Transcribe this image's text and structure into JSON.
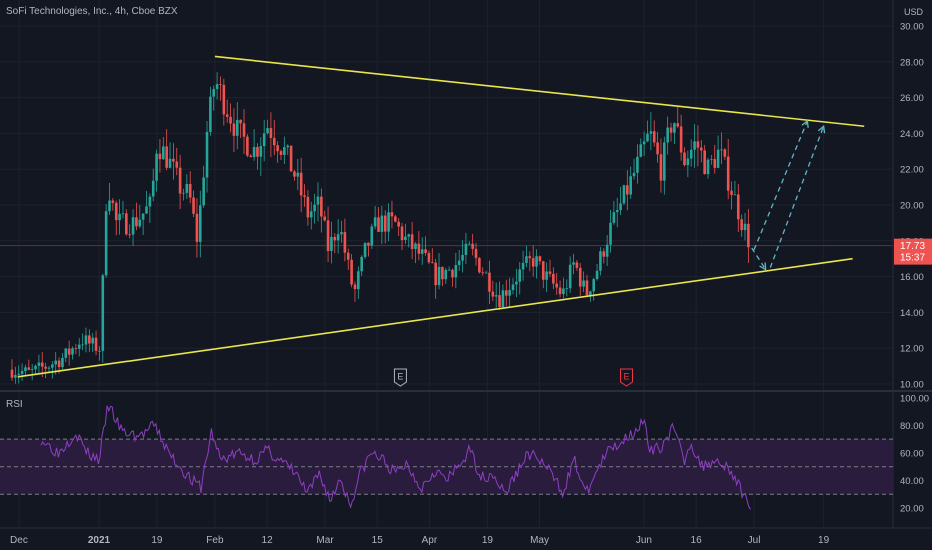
{
  "chart_data": {
    "type": "candlestick",
    "title": "SoFi Technologies, Inc., 4h, Cboe BZX",
    "currency": "USD",
    "price_axis": {
      "ylim": [
        10.0,
        30.0
      ],
      "ticks": [
        "10.00",
        "12.00",
        "14.00",
        "16.00",
        "18.00",
        "20.00",
        "22.00",
        "24.00",
        "26.00",
        "28.00",
        "30.00"
      ]
    },
    "time_axis": {
      "ticks": [
        "Dec",
        "2021",
        "19",
        "Feb",
        "12",
        "Mar",
        "15",
        "Apr",
        "19",
        "May",
        "Jun",
        "16",
        "Jul",
        "19"
      ]
    },
    "last_price": {
      "value": "17.73",
      "countdown": "15:37",
      "price": 17.73
    },
    "price_series": [
      {
        "t": 0.0,
        "p": 10.8
      },
      {
        "t": 1.5,
        "p": 10.6
      },
      {
        "t": 3.0,
        "p": 11.0
      },
      {
        "t": 4.5,
        "p": 11.5
      },
      {
        "t": 6.0,
        "p": 12.5
      },
      {
        "t": 6.8,
        "p": 12.2
      },
      {
        "t": 7.6,
        "p": 12.0
      },
      {
        "t": 8.2,
        "p": 21.5
      },
      {
        "t": 9.0,
        "p": 19.0
      },
      {
        "t": 10.5,
        "p": 19.0
      },
      {
        "t": 12.0,
        "p": 20.0
      },
      {
        "t": 12.5,
        "p": 23.5
      },
      {
        "t": 13.5,
        "p": 22.5
      },
      {
        "t": 14.5,
        "p": 21.0
      },
      {
        "t": 15.3,
        "p": 20.5
      },
      {
        "t": 16.0,
        "p": 18.0
      },
      {
        "t": 16.8,
        "p": 24.0
      },
      {
        "t": 17.5,
        "p": 27.0
      },
      {
        "t": 18.5,
        "p": 25.5
      },
      {
        "t": 19.5,
        "p": 24.0
      },
      {
        "t": 21.0,
        "p": 23.0
      },
      {
        "t": 22.0,
        "p": 24.5
      },
      {
        "t": 23.5,
        "p": 23.0
      },
      {
        "t": 24.5,
        "p": 21.5
      },
      {
        "t": 25.5,
        "p": 19.5
      },
      {
        "t": 26.5,
        "p": 20.0
      },
      {
        "t": 27.3,
        "p": 17.5
      },
      {
        "t": 28.2,
        "p": 19.0
      },
      {
        "t": 29.0,
        "p": 16.5
      },
      {
        "t": 29.5,
        "p": 15.0
      },
      {
        "t": 30.5,
        "p": 17.5
      },
      {
        "t": 31.5,
        "p": 19.0
      },
      {
        "t": 33.0,
        "p": 19.0
      },
      {
        "t": 34.0,
        "p": 18.0
      },
      {
        "t": 35.5,
        "p": 17.0
      },
      {
        "t": 36.5,
        "p": 16.0
      },
      {
        "t": 38.0,
        "p": 16.5
      },
      {
        "t": 39.5,
        "p": 17.5
      },
      {
        "t": 40.5,
        "p": 16.5
      },
      {
        "t": 42.0,
        "p": 14.8
      },
      {
        "t": 43.5,
        "p": 16.0
      },
      {
        "t": 45.0,
        "p": 17.0
      },
      {
        "t": 46.0,
        "p": 16.0
      },
      {
        "t": 47.5,
        "p": 15.0
      },
      {
        "t": 48.5,
        "p": 16.8
      },
      {
        "t": 49.5,
        "p": 15.0
      },
      {
        "t": 50.5,
        "p": 16.5
      },
      {
        "t": 51.5,
        "p": 18.5
      },
      {
        "t": 52.5,
        "p": 20.0
      },
      {
        "t": 53.5,
        "p": 21.5
      },
      {
        "t": 55.0,
        "p": 24.0
      },
      {
        "t": 56.0,
        "p": 22.0
      },
      {
        "t": 57.0,
        "p": 25.0
      },
      {
        "t": 58.0,
        "p": 22.5
      },
      {
        "t": 59.0,
        "p": 23.5
      },
      {
        "t": 60.0,
        "p": 22.0
      },
      {
        "t": 61.0,
        "p": 23.0
      },
      {
        "t": 62.0,
        "p": 21.0
      },
      {
        "t": 63.0,
        "p": 19.0
      },
      {
        "t": 63.7,
        "p": 17.73
      }
    ],
    "trendlines": [
      {
        "name": "upper",
        "from": {
          "t": 17.5,
          "p": 28.3
        },
        "to": {
          "t": 73.5,
          "p": 24.4
        }
      },
      {
        "name": "lower",
        "from": {
          "t": 0.5,
          "p": 10.4
        },
        "to": {
          "t": 72.5,
          "p": 17.0
        }
      }
    ],
    "projection": [
      {
        "from": {
          "t": 63.8,
          "p": 17.6
        },
        "to": {
          "t": 65.0,
          "p": 16.4
        }
      },
      {
        "from": {
          "t": 64.0,
          "p": 17.5
        },
        "to": {
          "t": 68.6,
          "p": 24.7
        }
      },
      {
        "from": {
          "t": 65.4,
          "p": 16.5
        },
        "to": {
          "t": 70.0,
          "p": 24.4
        }
      }
    ],
    "earnings_markers": [
      {
        "label": "E",
        "t": 33.5,
        "color": "#b2b5be"
      },
      {
        "label": "E",
        "t": 53.0,
        "color": "#f23645"
      }
    ],
    "rsi": {
      "label": "RSI",
      "ylim": [
        15,
        102
      ],
      "ticks": [
        "100.00",
        "80.00",
        "60.00",
        "40.00",
        "20.00"
      ],
      "bands": [
        30,
        50,
        70
      ],
      "series": [
        {
          "t": 2.5,
          "v": 70
        },
        {
          "t": 4.0,
          "v": 60
        },
        {
          "t": 5.5,
          "v": 75
        },
        {
          "t": 6.5,
          "v": 60
        },
        {
          "t": 7.5,
          "v": 55
        },
        {
          "t": 8.3,
          "v": 95
        },
        {
          "t": 9.5,
          "v": 75
        },
        {
          "t": 11.0,
          "v": 72
        },
        {
          "t": 12.3,
          "v": 80
        },
        {
          "t": 13.5,
          "v": 60
        },
        {
          "t": 14.5,
          "v": 50
        },
        {
          "t": 15.5,
          "v": 40
        },
        {
          "t": 16.3,
          "v": 35
        },
        {
          "t": 17.2,
          "v": 75
        },
        {
          "t": 18.0,
          "v": 55
        },
        {
          "t": 19.5,
          "v": 60
        },
        {
          "t": 21.0,
          "v": 55
        },
        {
          "t": 22.0,
          "v": 62
        },
        {
          "t": 23.5,
          "v": 52
        },
        {
          "t": 24.5,
          "v": 45
        },
        {
          "t": 25.5,
          "v": 30
        },
        {
          "t": 26.5,
          "v": 45
        },
        {
          "t": 27.5,
          "v": 25
        },
        {
          "t": 28.3,
          "v": 42
        },
        {
          "t": 29.2,
          "v": 22
        },
        {
          "t": 30.0,
          "v": 45
        },
        {
          "t": 31.0,
          "v": 60
        },
        {
          "t": 32.0,
          "v": 55
        },
        {
          "t": 33.0,
          "v": 45
        },
        {
          "t": 34.0,
          "v": 52
        },
        {
          "t": 35.3,
          "v": 35
        },
        {
          "t": 36.5,
          "v": 48
        },
        {
          "t": 37.5,
          "v": 40
        },
        {
          "t": 38.5,
          "v": 50
        },
        {
          "t": 39.5,
          "v": 62
        },
        {
          "t": 40.5,
          "v": 42
        },
        {
          "t": 41.5,
          "v": 45
        },
        {
          "t": 42.5,
          "v": 30
        },
        {
          "t": 43.5,
          "v": 45
        },
        {
          "t": 44.5,
          "v": 60
        },
        {
          "t": 45.5,
          "v": 55
        },
        {
          "t": 46.5,
          "v": 45
        },
        {
          "t": 47.5,
          "v": 32
        },
        {
          "t": 48.5,
          "v": 55
        },
        {
          "t": 49.5,
          "v": 30
        },
        {
          "t": 50.5,
          "v": 48
        },
        {
          "t": 51.5,
          "v": 62
        },
        {
          "t": 52.5,
          "v": 68
        },
        {
          "t": 53.5,
          "v": 75
        },
        {
          "t": 54.5,
          "v": 83
        },
        {
          "t": 55.0,
          "v": 60
        },
        {
          "t": 56.0,
          "v": 65
        },
        {
          "t": 57.0,
          "v": 78
        },
        {
          "t": 58.0,
          "v": 55
        },
        {
          "t": 58.5,
          "v": 68
        },
        {
          "t": 59.5,
          "v": 50
        },
        {
          "t": 60.5,
          "v": 55
        },
        {
          "t": 61.5,
          "v": 52
        },
        {
          "t": 62.5,
          "v": 40
        },
        {
          "t": 63.0,
          "v": 30
        },
        {
          "t": 63.7,
          "v": 23
        }
      ]
    },
    "colors": {
      "background": "#131722",
      "grid": "#1e222d",
      "text": "#b2b5be",
      "up": "#26a69a",
      "down": "#ef5350",
      "trendline": "#e8e64a",
      "projection": "#5fb8c6",
      "rsi_line": "#8e3fc4",
      "rsi_band": "#2a1c3d",
      "rsi_dash": "#7b7e88",
      "price_badge": "#ef5350",
      "price_line": "#6b2d33"
    }
  }
}
